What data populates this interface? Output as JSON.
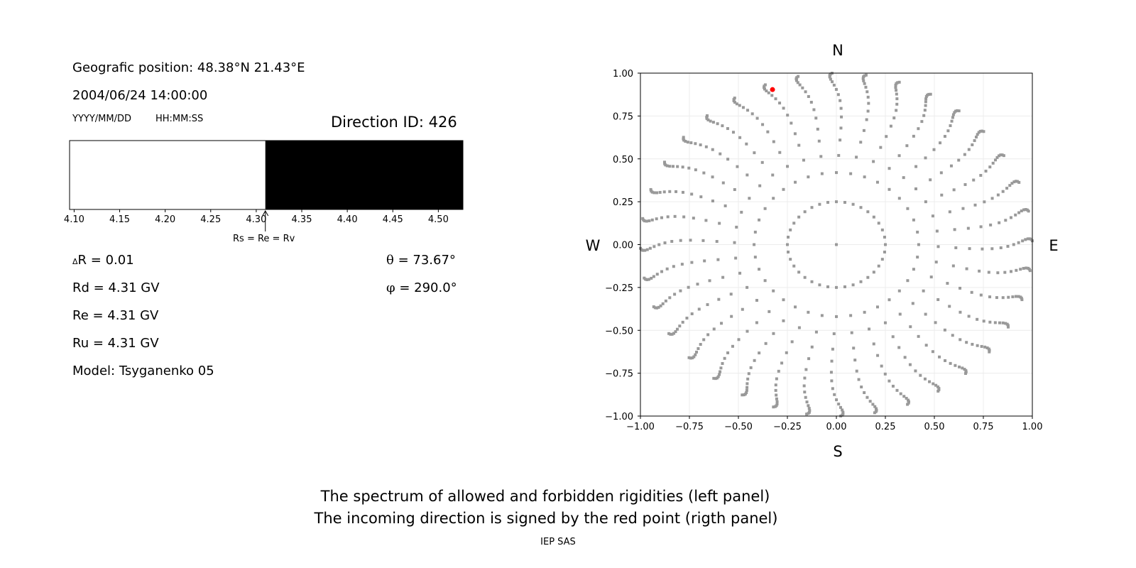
{
  "left_panel": {
    "position": "Geografic position: 48.38°N 21.43°E",
    "datetime": "2004/06/24 14:00:00",
    "date_format": "YYYY/MM/DD",
    "time_format": "HH:MM:SS",
    "direction_id": "Direction ID: 426",
    "delta_r": "R = 0.01",
    "delta_symbol": "Δ",
    "rd": "Rd = 4.31 GV",
    "re": "Re = 4.31 GV",
    "ru": "Ru = 4.31 GV",
    "model": "Model: Tsyganenko 05",
    "theta_symbol": "θ",
    "theta": "= 73.67°",
    "phi_symbol": "φ",
    "phi": "= 290.0°",
    "annotation": "Rs = Re = Rv"
  },
  "caption": {
    "line1": "The spectrum of allowed and forbidden rigidities (left panel)",
    "line2": "The incoming direction is signed by the red point (rigth panel)",
    "credit": "IEP SAS"
  },
  "chart_data": [
    {
      "type": "bar",
      "xlim": [
        4.095,
        4.527
      ],
      "xticks": [
        "4.10",
        "4.15",
        "4.20",
        "4.25",
        "4.30",
        "4.35",
        "4.40",
        "4.45",
        "4.50"
      ],
      "segments": [
        {
          "from": 4.095,
          "to": 4.31,
          "state": "allowed",
          "color": "#ffffff"
        },
        {
          "from": 4.31,
          "to": 4.527,
          "state": "forbidden",
          "color": "#000000"
        }
      ],
      "marker": 4.31
    },
    {
      "type": "scatter",
      "xlim": [
        -1,
        1
      ],
      "ylim": [
        -1,
        1
      ],
      "grid": true,
      "xticks": [
        "−1.00",
        "−0.75",
        "−0.50",
        "−0.25",
        "0.00",
        "0.25",
        "0.50",
        "0.75",
        "1.00"
      ],
      "yticks": [
        "1.00",
        "0.75",
        "0.50",
        "0.25",
        "0.00",
        "−0.25",
        "−0.50",
        "−0.75",
        "−1.00"
      ],
      "compass": {
        "n": "N",
        "s": "S",
        "e": "E",
        "w": "W"
      },
      "point_color": "#999999",
      "highlight": {
        "x": -0.326,
        "y": 0.904,
        "color": "#ff0000"
      }
    }
  ]
}
